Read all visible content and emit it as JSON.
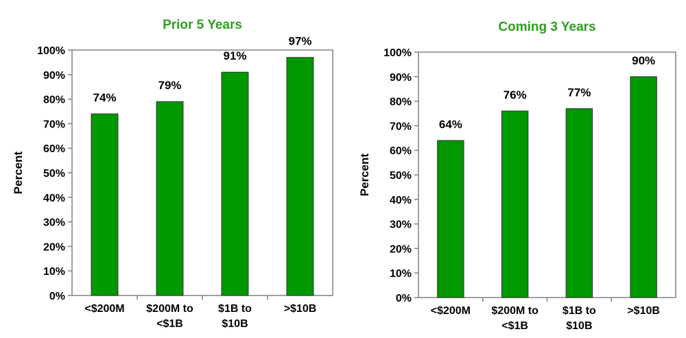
{
  "chart_data": [
    {
      "type": "bar",
      "title": "Prior 5 Years",
      "ylabel": "Percent",
      "categories": [
        [
          "<$200M"
        ],
        [
          "$200M to",
          "<$1B"
        ],
        [
          "$1B to",
          "$10B"
        ],
        [
          ">$10B"
        ]
      ],
      "values": [
        74,
        79,
        91,
        97
      ],
      "data_labels": [
        "74%",
        "79%",
        "91%",
        "97%"
      ],
      "yticks": [
        "0%",
        "10%",
        "20%",
        "30%",
        "40%",
        "50%",
        "60%",
        "70%",
        "80%",
        "90%",
        "100%"
      ],
      "ylim": [
        0,
        100
      ],
      "grid": false,
      "bar_color": "#009900",
      "title_color": "#2e9e1e"
    },
    {
      "type": "bar",
      "title": "Coming 3 Years",
      "ylabel": "Percent",
      "categories": [
        [
          "<$200M"
        ],
        [
          "$200M to",
          "<$1B"
        ],
        [
          "$1B to",
          "$10B"
        ],
        [
          ">$10B"
        ]
      ],
      "values": [
        64,
        76,
        77,
        90
      ],
      "data_labels": [
        "64%",
        "76%",
        "77%",
        "90%"
      ],
      "yticks": [
        "0%",
        "10%",
        "20%",
        "30%",
        "40%",
        "50%",
        "60%",
        "70%",
        "80%",
        "90%",
        "100%"
      ],
      "ylim": [
        0,
        100
      ],
      "grid": false,
      "bar_color": "#009900",
      "title_color": "#2e9e1e"
    }
  ]
}
